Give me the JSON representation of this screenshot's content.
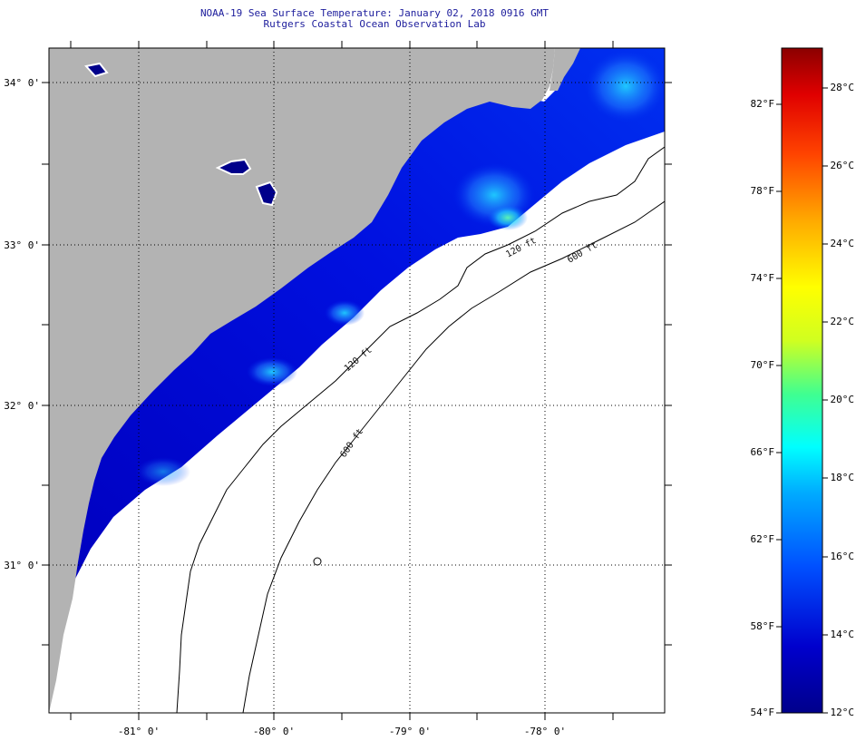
{
  "header": {
    "title": "NOAA-19 Sea Surface Temperature:  January 02, 2018 0916 GMT",
    "subtitle": "Rutgers Coastal Ocean Observation Lab"
  },
  "map": {
    "lat_labels": [
      "34° 0'",
      "33° 0'",
      "32° 0'",
      "31° 0'"
    ],
    "lon_labels": [
      "-81° 0'",
      "-80° 0'",
      "-79° 0'",
      "-78° 0'"
    ],
    "contour_labels": [
      "120 ft",
      "600 ft",
      "120 ft",
      "600 ft"
    ]
  },
  "colorbar": {
    "f_labels": [
      "82°F",
      "78°F",
      "74°F",
      "70°F",
      "66°F",
      "62°F",
      "58°F",
      "54°F"
    ],
    "c_labels": [
      "28°C",
      "26°C",
      "24°C",
      "22°C",
      "20°C",
      "18°C",
      "16°C",
      "14°C",
      "12°C"
    ],
    "colors": [
      "#00008b",
      "#0000cd",
      "#0050ff",
      "#00aaff",
      "#00ffff",
      "#40ff90",
      "#d0ff20",
      "#ffff00",
      "#ffaa00",
      "#ff4400",
      "#e00000",
      "#8b0000"
    ]
  },
  "colors": {
    "land": "#b3b3b3",
    "ocean": "#ffffff",
    "title_text": "#1c1c9c"
  }
}
